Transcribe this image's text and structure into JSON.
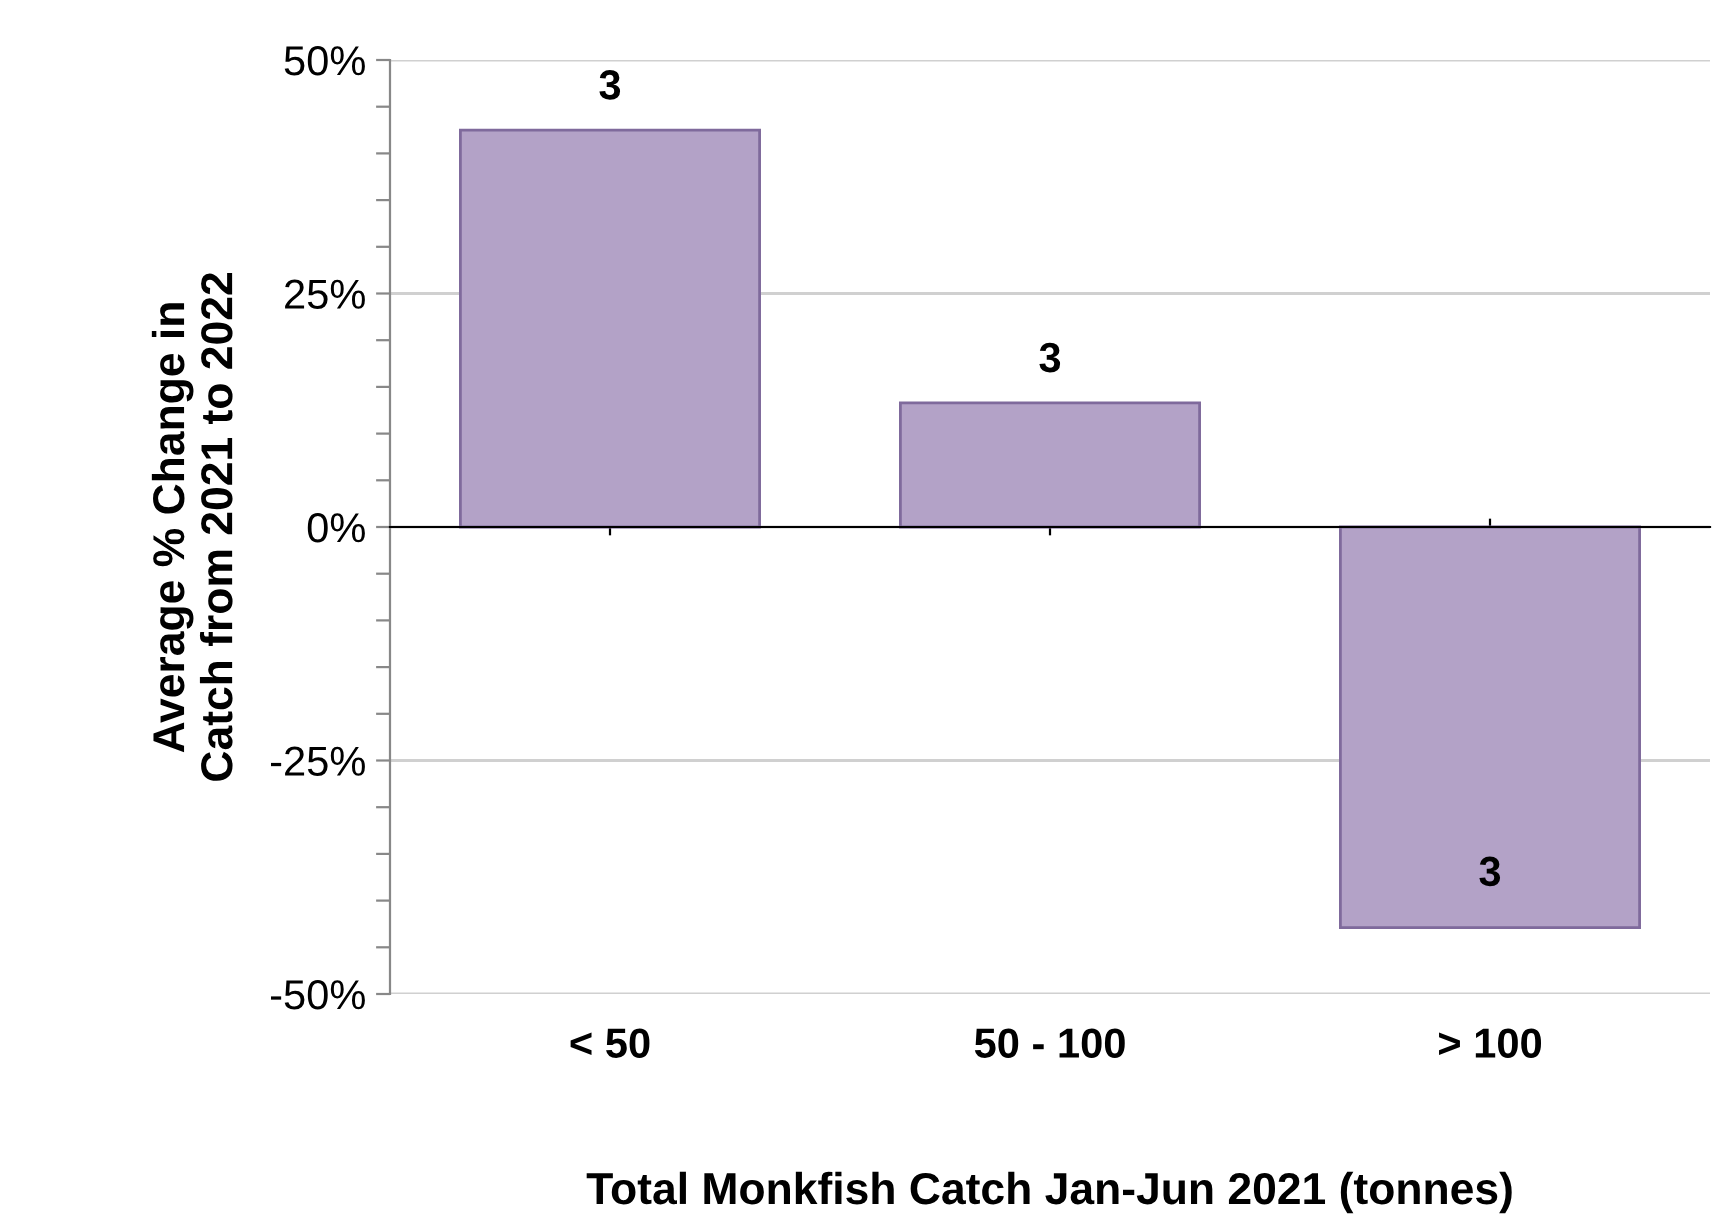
{
  "chart_data": {
    "type": "bar",
    "xlabel": "Total Monkfish Catch Jan-Jun 2021 (tonnes)",
    "ylabel": "Average % Change in\nCatch from 2021 to 2022",
    "categories": [
      "< 50",
      "50 - 100",
      "> 100"
    ],
    "values": [
      42.5,
      13.3,
      -42.9
    ],
    "color": "#b3a2c7",
    "ylim": [
      -50,
      50
    ],
    "yticks": [
      {
        "value": -50,
        "label": "-50%"
      },
      {
        "value": -45,
        "label": null
      },
      {
        "value": -40,
        "label": null
      },
      {
        "value": -35,
        "label": null
      },
      {
        "value": -30,
        "label": null
      },
      {
        "value": -25,
        "label": "-25%"
      },
      {
        "value": -20,
        "label": null
      },
      {
        "value": -15,
        "label": null
      },
      {
        "value": -10,
        "label": null
      },
      {
        "value": -5,
        "label": null
      },
      {
        "value": 0,
        "label": "0%"
      },
      {
        "value": 5,
        "label": null
      },
      {
        "value": 10,
        "label": null
      },
      {
        "value": 15,
        "label": null
      },
      {
        "value": 20,
        "label": null
      },
      {
        "value": 25,
        "label": "25%"
      },
      {
        "value": 30,
        "label": null
      },
      {
        "value": 35,
        "label": null
      },
      {
        "value": 40,
        "label": null
      },
      {
        "value": 45,
        "label": null
      },
      {
        "value": 50,
        "label": "50%"
      }
    ],
    "grid": "y",
    "annotations": [
      {
        "text": "3",
        "x": "< 50",
        "y": 42.5
      },
      {
        "text": "3",
        "x": "50 - 100",
        "y": 13.3
      },
      {
        "text": "3",
        "x": "> 100",
        "y": -42.9
      }
    ]
  }
}
